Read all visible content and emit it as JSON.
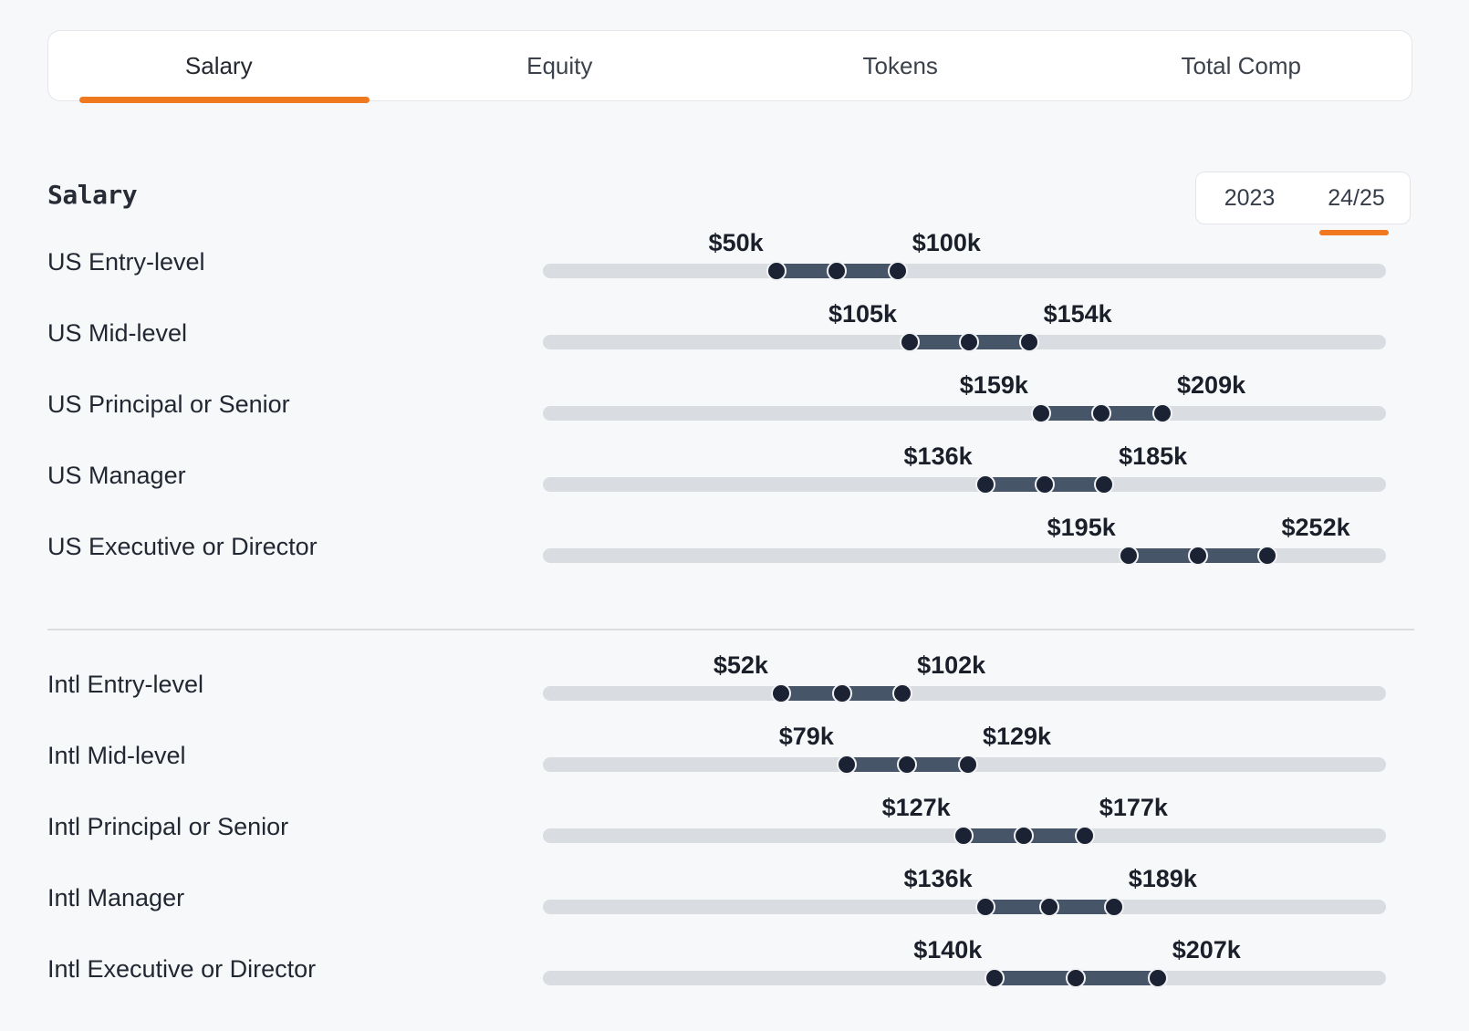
{
  "tabs": {
    "items": [
      {
        "label": "Salary",
        "active": true
      },
      {
        "label": "Equity",
        "active": false
      },
      {
        "label": "Tokens",
        "active": false
      },
      {
        "label": "Total Comp",
        "active": false
      }
    ]
  },
  "section": {
    "title": "Salary"
  },
  "year_toggle": {
    "options": [
      {
        "label": "2023",
        "selected": false
      },
      {
        "label": "24/25",
        "selected": true
      }
    ]
  },
  "colors": {
    "accent_orange": "#f0791f",
    "track_gray": "#d9dce1",
    "range_fill": "#475569",
    "dot_navy": "#1b2233",
    "dot_ring": "#f1f2f4",
    "text_dark": "#20252f"
  },
  "chart_data": {
    "type": "bar",
    "subtype": "horizontal-range-dumbbell",
    "title": "Salary",
    "unit": "USD thousands per year",
    "period_selected": "24/25",
    "grid": false,
    "legend_position": "none",
    "axis": {
      "domain_k": [
        -46,
        301
      ],
      "ticks_visible": false
    },
    "groups": [
      {
        "name": "US",
        "rows": [
          {
            "label": "US Entry-level",
            "min_k": 50,
            "mid_k": 75,
            "max_k": 100,
            "min_label": "$50k",
            "max_label": "$100k"
          },
          {
            "label": "US Mid-level",
            "min_k": 105,
            "mid_k": 129.5,
            "max_k": 154,
            "min_label": "$105k",
            "max_label": "$154k"
          },
          {
            "label": "US Principal or Senior",
            "min_k": 159,
            "mid_k": 184,
            "max_k": 209,
            "min_label": "$159k",
            "max_label": "$209k"
          },
          {
            "label": "US Manager",
            "min_k": 136,
            "mid_k": 160.5,
            "max_k": 185,
            "min_label": "$136k",
            "max_label": "$185k"
          },
          {
            "label": "US Executive or Director",
            "min_k": 195,
            "mid_k": 223.5,
            "max_k": 252,
            "min_label": "$195k",
            "max_label": "$252k"
          }
        ]
      },
      {
        "name": "Intl",
        "rows": [
          {
            "label": "Intl Entry-level",
            "min_k": 52,
            "mid_k": 77,
            "max_k": 102,
            "min_label": "$52k",
            "max_label": "$102k"
          },
          {
            "label": "Intl Mid-level",
            "min_k": 79,
            "mid_k": 104,
            "max_k": 129,
            "min_label": "$79k",
            "max_label": "$129k"
          },
          {
            "label": "Intl Principal or Senior",
            "min_k": 127,
            "mid_k": 152,
            "max_k": 177,
            "min_label": "$127k",
            "max_label": "$177k"
          },
          {
            "label": "Intl Manager",
            "min_k": 136,
            "mid_k": 162.5,
            "max_k": 189,
            "min_label": "$136k",
            "max_label": "$189k"
          },
          {
            "label": "Intl Executive or Director",
            "min_k": 140,
            "mid_k": 173.5,
            "max_k": 207,
            "min_label": "$140k",
            "max_label": "$207k"
          }
        ]
      }
    ]
  }
}
